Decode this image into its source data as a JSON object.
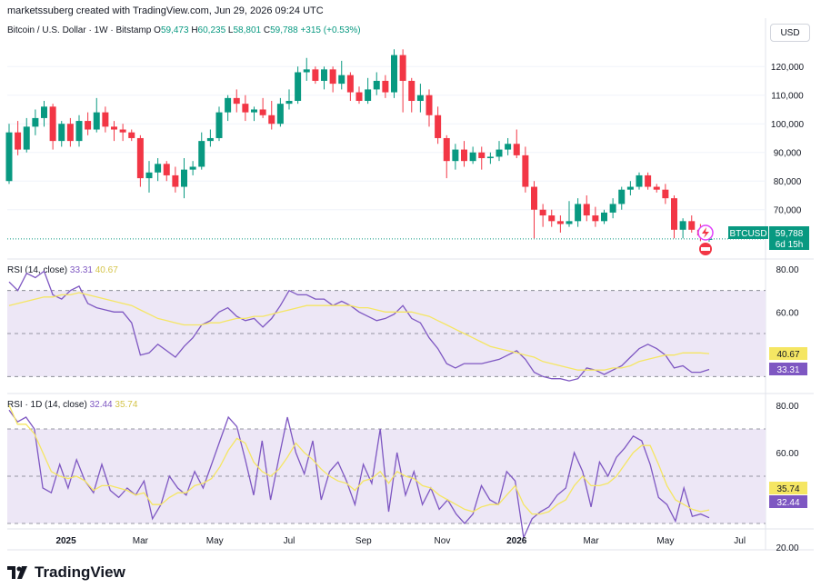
{
  "header": {
    "attribution": "marketssuberg created with TradingView.com, Jun 29, 2026 09:24 UTC"
  },
  "legend": {
    "symbol": "Bitcoin / U.S. Dollar · 1W · Bitstamp",
    "open_label": "O",
    "open": "59,473",
    "high_label": "H",
    "high": "60,235",
    "low_label": "L",
    "low": "58,801",
    "close_label": "C",
    "close": "59,788",
    "change": "+315 (+0.53%)"
  },
  "currency_button": "USD",
  "price_badge": {
    "symbol": "BTCUSD",
    "price": "59,788",
    "countdown": "6d 15h"
  },
  "rsi_weekly": {
    "label": "RSI (14, close)",
    "value": "33.31",
    "ma": "40.67"
  },
  "rsi_daily": {
    "label": "RSI · 1D (14, close)",
    "value": "32.44",
    "ma": "35.74"
  },
  "brand": {
    "name": "TradingView"
  },
  "colors": {
    "up": "#089981",
    "down": "#f23645",
    "rsi": "#7e57c2",
    "rsi_ma": "#f5e663",
    "band": "#ede7f6"
  },
  "chart_data": [
    {
      "type": "candlestick",
      "title": "Bitcoin / U.S. Dollar · 1W · Bitstamp",
      "x_tick_labels": [
        "2025",
        "Mar",
        "May",
        "Jul",
        "Sep",
        "Nov",
        "2026",
        "Mar",
        "May",
        "Jul"
      ],
      "y_tick_labels": [
        "70,000",
        "80,000",
        "90,000",
        "100,000",
        "110,000",
        "120,000"
      ],
      "ylim": [
        55000,
        128000
      ],
      "last_price": 59788,
      "candles": [
        {
          "o": 80000,
          "h": 100000,
          "l": 79000,
          "c": 97000
        },
        {
          "o": 97000,
          "h": 101000,
          "l": 89000,
          "c": 91000
        },
        {
          "o": 91000,
          "h": 102000,
          "l": 90000,
          "c": 99000
        },
        {
          "o": 99000,
          "h": 105000,
          "l": 96000,
          "c": 102000
        },
        {
          "o": 102000,
          "h": 108000,
          "l": 99000,
          "c": 106000
        },
        {
          "o": 106000,
          "h": 107000,
          "l": 91000,
          "c": 94000
        },
        {
          "o": 94000,
          "h": 101000,
          "l": 92000,
          "c": 100000
        },
        {
          "o": 100000,
          "h": 102000,
          "l": 92000,
          "c": 94000
        },
        {
          "o": 94000,
          "h": 103000,
          "l": 92000,
          "c": 101000
        },
        {
          "o": 101000,
          "h": 104000,
          "l": 96000,
          "c": 98000
        },
        {
          "o": 98000,
          "h": 109000,
          "l": 97000,
          "c": 104000
        },
        {
          "o": 104000,
          "h": 106000,
          "l": 97000,
          "c": 99000
        },
        {
          "o": 99000,
          "h": 101000,
          "l": 94000,
          "c": 98000
        },
        {
          "o": 98000,
          "h": 100000,
          "l": 94000,
          "c": 97000
        },
        {
          "o": 97000,
          "h": 98000,
          "l": 94000,
          "c": 95000
        },
        {
          "o": 95000,
          "h": 96000,
          "l": 78000,
          "c": 81000
        },
        {
          "o": 81000,
          "h": 87000,
          "l": 76000,
          "c": 83000
        },
        {
          "o": 83000,
          "h": 88000,
          "l": 80000,
          "c": 86000
        },
        {
          "o": 86000,
          "h": 87000,
          "l": 80000,
          "c": 82000
        },
        {
          "o": 82000,
          "h": 85000,
          "l": 76000,
          "c": 78000
        },
        {
          "o": 78000,
          "h": 88000,
          "l": 74000,
          "c": 84000
        },
        {
          "o": 84000,
          "h": 87000,
          "l": 82000,
          "c": 85000
        },
        {
          "o": 85000,
          "h": 97000,
          "l": 84000,
          "c": 94000
        },
        {
          "o": 94000,
          "h": 98000,
          "l": 92000,
          "c": 95000
        },
        {
          "o": 95000,
          "h": 106000,
          "l": 94000,
          "c": 104000
        },
        {
          "o": 104000,
          "h": 110000,
          "l": 101000,
          "c": 109000
        },
        {
          "o": 109000,
          "h": 112000,
          "l": 104000,
          "c": 107000
        },
        {
          "o": 107000,
          "h": 110000,
          "l": 101000,
          "c": 104000
        },
        {
          "o": 104000,
          "h": 106000,
          "l": 101000,
          "c": 105000
        },
        {
          "o": 105000,
          "h": 109000,
          "l": 102000,
          "c": 103000
        },
        {
          "o": 103000,
          "h": 108000,
          "l": 98000,
          "c": 100000
        },
        {
          "o": 100000,
          "h": 109000,
          "l": 99000,
          "c": 107000
        },
        {
          "o": 107000,
          "h": 112000,
          "l": 105000,
          "c": 108000
        },
        {
          "o": 108000,
          "h": 120000,
          "l": 107000,
          "c": 118000
        },
        {
          "o": 118000,
          "h": 123000,
          "l": 115000,
          "c": 119000
        },
        {
          "o": 119000,
          "h": 120000,
          "l": 114000,
          "c": 115000
        },
        {
          "o": 115000,
          "h": 120000,
          "l": 112000,
          "c": 119000
        },
        {
          "o": 119000,
          "h": 120000,
          "l": 111000,
          "c": 114000
        },
        {
          "o": 114000,
          "h": 122000,
          "l": 112000,
          "c": 117000
        },
        {
          "o": 117000,
          "h": 118000,
          "l": 108000,
          "c": 111000
        },
        {
          "o": 111000,
          "h": 113000,
          "l": 107000,
          "c": 108000
        },
        {
          "o": 108000,
          "h": 116000,
          "l": 107000,
          "c": 112000
        },
        {
          "o": 112000,
          "h": 118000,
          "l": 110000,
          "c": 115000
        },
        {
          "o": 115000,
          "h": 117000,
          "l": 109000,
          "c": 111000
        },
        {
          "o": 111000,
          "h": 126000,
          "l": 109000,
          "c": 124000
        },
        {
          "o": 124000,
          "h": 126000,
          "l": 104000,
          "c": 115000
        },
        {
          "o": 115000,
          "h": 116000,
          "l": 104000,
          "c": 108000
        },
        {
          "o": 108000,
          "h": 114000,
          "l": 104000,
          "c": 110000
        },
        {
          "o": 110000,
          "h": 112000,
          "l": 99000,
          "c": 103000
        },
        {
          "o": 103000,
          "h": 106000,
          "l": 93000,
          "c": 95000
        },
        {
          "o": 95000,
          "h": 96000,
          "l": 81000,
          "c": 87000
        },
        {
          "o": 87000,
          "h": 93000,
          "l": 84000,
          "c": 91000
        },
        {
          "o": 91000,
          "h": 94000,
          "l": 85000,
          "c": 87000
        },
        {
          "o": 87000,
          "h": 92000,
          "l": 86000,
          "c": 90000
        },
        {
          "o": 90000,
          "h": 92000,
          "l": 84000,
          "c": 88000
        },
        {
          "o": 88000,
          "h": 90000,
          "l": 86000,
          "c": 88500
        },
        {
          "o": 88500,
          "h": 94000,
          "l": 87000,
          "c": 91000
        },
        {
          "o": 91000,
          "h": 95000,
          "l": 89000,
          "c": 93000
        },
        {
          "o": 93000,
          "h": 98000,
          "l": 88000,
          "c": 89000
        },
        {
          "o": 89000,
          "h": 92000,
          "l": 76000,
          "c": 78000
        },
        {
          "o": 78000,
          "h": 80000,
          "l": 60000,
          "c": 70000
        },
        {
          "o": 70000,
          "h": 72000,
          "l": 64000,
          "c": 68000
        },
        {
          "o": 68000,
          "h": 70000,
          "l": 64000,
          "c": 66000
        },
        {
          "o": 66000,
          "h": 68000,
          "l": 62000,
          "c": 65000
        },
        {
          "o": 65000,
          "h": 73000,
          "l": 64000,
          "c": 66000
        },
        {
          "o": 66000,
          "h": 74000,
          "l": 64000,
          "c": 72000
        },
        {
          "o": 72000,
          "h": 75000,
          "l": 66000,
          "c": 68000
        },
        {
          "o": 68000,
          "h": 71000,
          "l": 64000,
          "c": 66000
        },
        {
          "o": 66000,
          "h": 70000,
          "l": 65000,
          "c": 69000
        },
        {
          "o": 69000,
          "h": 74000,
          "l": 67000,
          "c": 72000
        },
        {
          "o": 72000,
          "h": 78000,
          "l": 70000,
          "c": 77000
        },
        {
          "o": 77000,
          "h": 80000,
          "l": 75000,
          "c": 78000
        },
        {
          "o": 78000,
          "h": 83000,
          "l": 77000,
          "c": 82000
        },
        {
          "o": 82000,
          "h": 83000,
          "l": 77000,
          "c": 78000
        },
        {
          "o": 78000,
          "h": 79000,
          "l": 76000,
          "c": 77000
        },
        {
          "o": 77000,
          "h": 79000,
          "l": 72000,
          "c": 74000
        },
        {
          "o": 74000,
          "h": 75000,
          "l": 60000,
          "c": 63000
        },
        {
          "o": 63000,
          "h": 67000,
          "l": 60000,
          "c": 66000
        },
        {
          "o": 66000,
          "h": 68000,
          "l": 62000,
          "c": 63000
        },
        {
          "o": 63000,
          "h": 65000,
          "l": 59000,
          "c": 61000
        },
        {
          "o": 59473,
          "h": 60235,
          "l": 58801,
          "c": 59788
        }
      ]
    },
    {
      "type": "line",
      "title": "RSI (14, close)",
      "y_tick_labels": [
        "60.00",
        "80.00"
      ],
      "ylim": [
        20,
        80
      ],
      "bands": [
        30,
        50,
        70
      ],
      "series": [
        {
          "name": "RSI",
          "values": [
            74,
            70,
            78,
            76,
            79,
            68,
            66,
            70,
            72,
            64,
            62,
            61,
            60,
            60,
            55,
            40,
            41,
            45,
            42,
            39,
            44,
            48,
            54,
            56,
            60,
            62,
            58,
            56,
            57,
            53,
            57,
            63,
            70,
            68,
            68,
            66,
            66,
            63,
            65,
            63,
            60,
            58,
            56,
            57,
            59,
            63,
            57,
            55,
            48,
            43,
            36,
            34,
            36,
            36,
            36,
            37,
            38,
            40,
            42,
            38,
            32,
            30,
            29,
            29,
            28,
            29,
            34,
            33,
            31,
            33,
            35,
            39,
            43,
            45,
            43,
            40,
            34,
            35,
            32,
            32,
            33.31
          ]
        },
        {
          "name": "MA",
          "values": [
            63,
            64,
            65,
            66,
            67,
            67,
            68,
            68,
            69,
            68,
            67,
            66,
            65,
            64,
            63,
            61,
            59,
            57,
            56,
            55,
            54,
            54,
            54,
            55,
            55,
            56,
            57,
            57,
            58,
            58,
            59,
            60,
            61,
            62,
            63,
            63,
            63,
            63,
            63,
            63,
            62,
            62,
            61,
            60,
            60,
            60,
            60,
            59,
            58,
            56,
            54,
            52,
            50,
            48,
            46,
            44,
            43,
            42,
            41,
            40,
            39,
            37,
            36,
            35,
            34,
            33,
            33,
            33,
            33,
            34,
            34,
            35,
            37,
            38,
            39,
            40,
            40,
            41,
            41,
            41,
            40.67
          ]
        }
      ]
    },
    {
      "type": "line",
      "title": "RSI · 1D (14, close)",
      "y_tick_labels": [
        "20.00",
        "60.00",
        "80.00"
      ],
      "ylim": [
        20,
        80
      ],
      "bands": [
        30,
        50,
        70
      ],
      "series": [
        {
          "name": "RSI",
          "values": [
            78,
            73,
            75,
            70,
            45,
            43,
            55,
            45,
            57,
            48,
            43,
            55,
            44,
            41,
            45,
            42,
            48,
            32,
            38,
            50,
            45,
            42,
            52,
            45,
            55,
            65,
            75,
            71,
            57,
            42,
            65,
            40,
            58,
            75,
            60,
            51,
            65,
            40,
            52,
            56,
            48,
            38,
            55,
            47,
            70,
            35,
            60,
            42,
            52,
            38,
            45,
            36,
            40,
            34,
            30,
            34,
            46,
            40,
            38,
            52,
            48,
            24,
            32,
            35,
            37,
            42,
            45,
            60,
            52,
            37,
            56,
            50,
            58,
            62,
            67,
            65,
            55,
            41,
            38,
            31,
            45,
            33,
            34,
            32.44
          ]
        },
        {
          "name": "MA",
          "values": [
            80,
            72,
            72,
            68,
            60,
            52,
            50,
            49,
            50,
            48,
            44,
            46,
            46,
            45,
            44,
            42,
            43,
            38,
            38,
            41,
            43,
            43,
            46,
            47,
            49,
            54,
            61,
            66,
            64,
            56,
            52,
            50,
            53,
            58,
            64,
            60,
            57,
            53,
            50,
            48,
            47,
            44,
            48,
            49,
            52,
            47,
            52,
            50,
            49,
            46,
            45,
            42,
            40,
            38,
            36,
            35,
            37,
            38,
            38,
            42,
            46,
            38,
            34,
            34,
            35,
            38,
            40,
            46,
            50,
            46,
            46,
            47,
            50,
            55,
            60,
            63,
            63,
            55,
            46,
            40,
            38,
            36,
            35,
            35.74
          ]
        }
      ]
    }
  ]
}
